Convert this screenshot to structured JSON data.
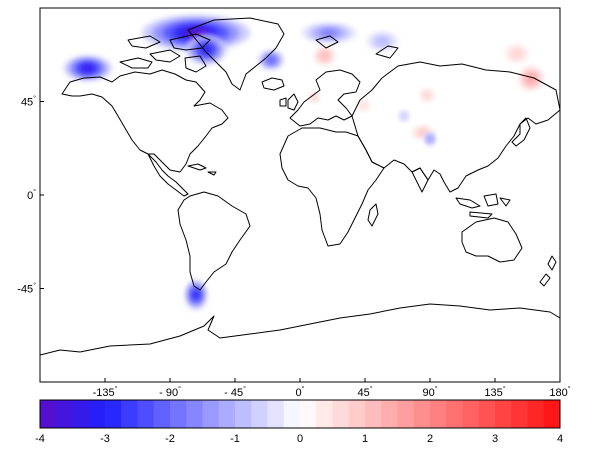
{
  "map": {
    "x_ticks": [
      {
        "value": -135,
        "label": "-135"
      },
      {
        "value": -90,
        "label": "- 90"
      },
      {
        "value": -45,
        "label": "- 45"
      },
      {
        "value": 0,
        "label": "0"
      },
      {
        "value": 45,
        "label": "45"
      },
      {
        "value": 90,
        "label": "90"
      },
      {
        "value": 135,
        "label": "135"
      },
      {
        "value": 180,
        "label": "180"
      }
    ],
    "y_ticks": [
      {
        "value": 45,
        "label": "45"
      },
      {
        "value": 0,
        "label": "0"
      },
      {
        "value": -45,
        "label": "-45"
      }
    ],
    "degree_symbol": "°",
    "lon_range": [
      -180,
      180
    ],
    "lat_range": [
      -90,
      90
    ],
    "anomalies": [
      {
        "name": "greenland-nw",
        "lon": -72,
        "lat": 78,
        "rx_deg": 28,
        "ry_deg": 6,
        "value": -4.0
      },
      {
        "name": "baffin",
        "lon": -65,
        "lat": 70,
        "rx_deg": 10,
        "ry_deg": 5,
        "value": -3.2
      },
      {
        "name": "alaska",
        "lon": -147,
        "lat": 61,
        "rx_deg": 12,
        "ry_deg": 4,
        "value": -3.4
      },
      {
        "name": "iceland",
        "lon": -20,
        "lat": 65,
        "rx_deg": 6,
        "ry_deg": 3,
        "value": -2.2
      },
      {
        "name": "svalbard",
        "lon": 20,
        "lat": 78,
        "rx_deg": 14,
        "ry_deg": 3,
        "value": -1.8
      },
      {
        "name": "novaya-zemlya",
        "lon": 57,
        "lat": 74,
        "rx_deg": 8,
        "ry_deg": 3,
        "value": -1.0
      },
      {
        "name": "patagonia",
        "lon": -72,
        "lat": -48,
        "rx_deg": 5,
        "ry_deg": 5,
        "value": -3.0
      },
      {
        "name": "scandinavia",
        "lon": 17,
        "lat": 67,
        "rx_deg": 5,
        "ry_deg": 3,
        "value": 1.2
      },
      {
        "name": "kamchatka",
        "lon": 160,
        "lat": 56,
        "rx_deg": 6,
        "ry_deg": 4,
        "value": 1.6
      },
      {
        "name": "east-siberia",
        "lon": 150,
        "lat": 68,
        "rx_deg": 6,
        "ry_deg": 3,
        "value": 0.8
      },
      {
        "name": "himalaya",
        "lon": 85,
        "lat": 30,
        "rx_deg": 5,
        "ry_deg": 2,
        "value": 1.0
      },
      {
        "name": "tibet",
        "lon": 90,
        "lat": 27,
        "rx_deg": 2,
        "ry_deg": 2,
        "value": -1.5
      },
      {
        "name": "altai",
        "lon": 88,
        "lat": 48,
        "rx_deg": 3,
        "ry_deg": 2,
        "value": 0.8
      },
      {
        "name": "caucasus",
        "lon": 44,
        "lat": 43,
        "rx_deg": 3,
        "ry_deg": 1.5,
        "value": 0.6
      },
      {
        "name": "pamir",
        "lon": 72,
        "lat": 38,
        "rx_deg": 2,
        "ry_deg": 1.5,
        "value": -0.8
      },
      {
        "name": "alps",
        "lon": 10,
        "lat": 47,
        "rx_deg": 2,
        "ry_deg": 1.5,
        "value": 0.8
      }
    ]
  },
  "colorbar": {
    "min": -4,
    "max": 4,
    "steps": 32,
    "tick_values": [
      -4,
      -3,
      -2,
      -1,
      0,
      1,
      2,
      3,
      4
    ],
    "tick_labels": [
      "-4",
      "-3",
      "-2",
      "-1",
      "0",
      "1",
      "2",
      "3",
      "4"
    ],
    "colors": {
      "min": "#5a0fc8",
      "neg": "#2020ff",
      "mid": "#ffffff",
      "pos": "#ff1010"
    }
  }
}
